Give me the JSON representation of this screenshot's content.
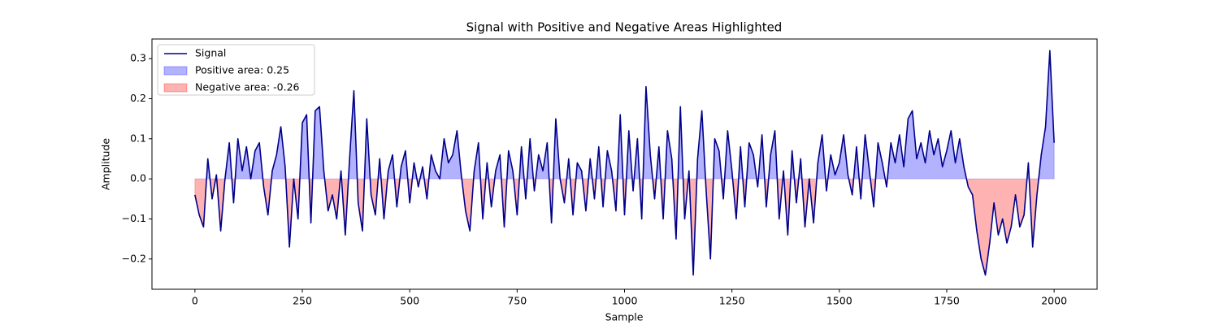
{
  "chart_data": {
    "type": "line",
    "title": "Signal with Positive and Negative Areas Highlighted",
    "x_label": "Sample",
    "y_label": "Amplitude",
    "x": [
      0,
      10,
      20,
      30,
      40,
      50,
      60,
      70,
      80,
      90,
      100,
      110,
      120,
      130,
      140,
      150,
      160,
      170,
      180,
      190,
      200,
      210,
      220,
      230,
      240,
      250,
      260,
      270,
      280,
      290,
      300,
      310,
      320,
      330,
      340,
      350,
      360,
      370,
      380,
      390,
      400,
      410,
      420,
      430,
      440,
      450,
      460,
      470,
      480,
      490,
      500,
      510,
      520,
      530,
      540,
      550,
      560,
      570,
      580,
      590,
      600,
      610,
      620,
      630,
      640,
      650,
      660,
      670,
      680,
      690,
      700,
      710,
      720,
      730,
      740,
      750,
      760,
      770,
      780,
      790,
      800,
      810,
      820,
      830,
      840,
      850,
      860,
      870,
      880,
      890,
      900,
      910,
      920,
      930,
      940,
      950,
      960,
      970,
      980,
      990,
      1000,
      1010,
      1020,
      1030,
      1040,
      1050,
      1060,
      1070,
      1080,
      1090,
      1100,
      1110,
      1120,
      1130,
      1140,
      1150,
      1160,
      1170,
      1180,
      1190,
      1200,
      1210,
      1220,
      1230,
      1240,
      1250,
      1260,
      1270,
      1280,
      1290,
      1300,
      1310,
      1320,
      1330,
      1340,
      1350,
      1360,
      1370,
      1380,
      1390,
      1400,
      1410,
      1420,
      1430,
      1440,
      1450,
      1460,
      1470,
      1480,
      1490,
      1500,
      1510,
      1520,
      1530,
      1540,
      1550,
      1560,
      1570,
      1580,
      1590,
      1600,
      1610,
      1620,
      1630,
      1640,
      1650,
      1660,
      1670,
      1680,
      1690,
      1700,
      1710,
      1720,
      1730,
      1740,
      1750,
      1760,
      1770,
      1780,
      1790,
      1800,
      1810,
      1820,
      1830,
      1840,
      1850,
      1860,
      1870,
      1880,
      1890,
      1900,
      1910,
      1920,
      1930,
      1940,
      1950,
      1960,
      1970,
      1980,
      1990,
      2000
    ],
    "series": [
      {
        "name": "Signal",
        "color": "#00008b",
        "values": [
          -0.04,
          -0.09,
          -0.12,
          0.05,
          -0.05,
          0.01,
          -0.13,
          0.0,
          0.09,
          -0.06,
          0.1,
          0.02,
          0.08,
          0.0,
          0.07,
          0.09,
          -0.02,
          -0.09,
          0.02,
          0.06,
          0.13,
          0.03,
          -0.17,
          0.0,
          -0.1,
          0.14,
          0.16,
          -0.11,
          0.17,
          0.18,
          0.02,
          -0.08,
          -0.04,
          -0.1,
          0.02,
          -0.14,
          0.05,
          0.22,
          -0.06,
          -0.13,
          0.15,
          -0.04,
          -0.09,
          0.05,
          -0.1,
          0.02,
          0.06,
          -0.07,
          0.03,
          0.07,
          -0.06,
          0.04,
          -0.02,
          0.03,
          -0.05,
          0.06,
          0.02,
          0.0,
          0.1,
          0.04,
          0.06,
          0.12,
          0.01,
          -0.08,
          -0.13,
          0.02,
          0.09,
          -0.1,
          0.04,
          -0.07,
          0.02,
          0.06,
          -0.12,
          0.07,
          0.02,
          -0.09,
          0.08,
          -0.05,
          0.1,
          -0.03,
          0.06,
          0.02,
          0.09,
          -0.11,
          0.15,
          0.0,
          -0.06,
          0.05,
          -0.09,
          0.04,
          0.02,
          -0.08,
          0.05,
          -0.05,
          0.08,
          -0.07,
          0.07,
          0.02,
          -0.08,
          0.16,
          -0.09,
          0.12,
          -0.03,
          0.1,
          -0.1,
          0.23,
          0.06,
          -0.05,
          0.08,
          -0.1,
          0.12,
          0.05,
          -0.15,
          0.18,
          -0.1,
          0.02,
          -0.24,
          0.05,
          0.17,
          -0.03,
          -0.2,
          0.1,
          0.07,
          -0.05,
          0.12,
          0.02,
          -0.1,
          0.08,
          -0.07,
          0.09,
          0.06,
          -0.02,
          0.11,
          -0.07,
          0.06,
          0.12,
          -0.1,
          0.02,
          -0.14,
          0.07,
          -0.06,
          0.05,
          -0.12,
          0.0,
          -0.11,
          0.04,
          0.11,
          -0.03,
          0.06,
          0.01,
          0.04,
          0.11,
          0.01,
          -0.04,
          0.08,
          -0.05,
          0.11,
          0.02,
          -0.07,
          0.09,
          0.04,
          -0.02,
          0.09,
          0.04,
          0.11,
          0.03,
          0.15,
          0.17,
          0.05,
          0.09,
          0.04,
          0.12,
          0.06,
          0.1,
          0.03,
          0.07,
          0.12,
          0.04,
          0.1,
          0.03,
          -0.02,
          -0.04,
          -0.13,
          -0.2,
          -0.24,
          -0.16,
          -0.06,
          -0.14,
          -0.1,
          -0.16,
          -0.12,
          -0.04,
          -0.12,
          -0.09,
          0.04,
          -0.17,
          -0.04,
          0.06,
          0.13,
          0.32,
          0.09
        ]
      }
    ],
    "areas": [
      {
        "name": "Positive area: 0.25",
        "color": "blue"
      },
      {
        "name": "Negative area: -0.26",
        "color": "red"
      }
    ],
    "area_opacity": 0.3,
    "xlim": [
      -100,
      2100
    ],
    "ylim": [
      -0.2755,
      0.349
    ],
    "xticks": [
      0,
      250,
      500,
      750,
      1000,
      1250,
      1500,
      1750,
      2000
    ],
    "yticks": [
      {
        "value": -0.2,
        "label": "−0.2"
      },
      {
        "value": -0.1,
        "label": "−0.1"
      },
      {
        "value": 0,
        "label": "0.0"
      },
      0.1,
      0.2,
      0.3
    ],
    "grid": false,
    "legend": "upper left"
  }
}
